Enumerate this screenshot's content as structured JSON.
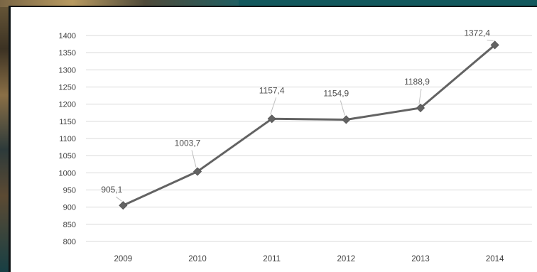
{
  "chart_data": {
    "type": "line",
    "categories": [
      "2009",
      "2010",
      "2011",
      "2012",
      "2013",
      "2014"
    ],
    "series": [
      {
        "values": [
          905.1,
          1003.7,
          1157.4,
          1154.9,
          1188.9,
          1372.4
        ],
        "labels": [
          "905,1",
          "1003,7",
          "1157,4",
          "1154,9",
          "1188,9",
          "1372,4"
        ],
        "color": "#636363"
      }
    ],
    "title": "",
    "xlabel": "",
    "ylabel": "",
    "ylim": [
      800,
      1400
    ],
    "yticks": [
      "800",
      "850",
      "900",
      "950",
      "1000",
      "1050",
      "1100",
      "1150",
      "1200",
      "1250",
      "1300",
      "1350",
      "1400"
    ],
    "grid": true,
    "legend": "none"
  }
}
